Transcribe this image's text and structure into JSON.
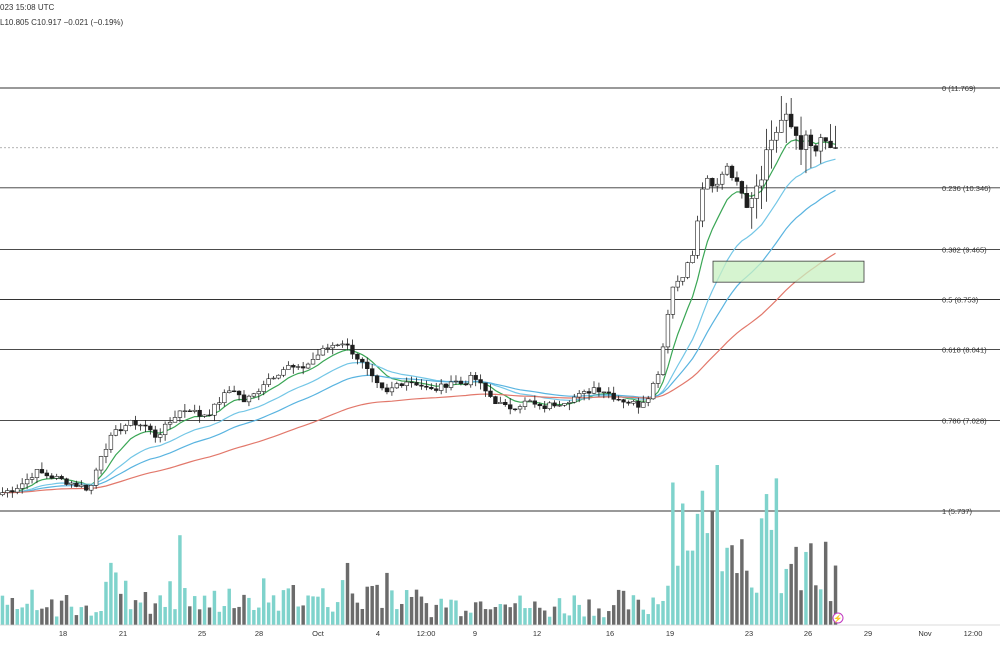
{
  "header": {
    "line1": "023 15:08 UTC",
    "line2": "L10.805  C10.917  −0.021 (−0.19%)"
  },
  "colors": {
    "up": "#ffffff",
    "down": "#1e1e1e",
    "ema_fast": "#3aa655",
    "ema_mid": "#73c6e6",
    "ema_mid2": "#5ab4e0",
    "ema_slow": "#e2786b",
    "vol_up": "#7fd3cc",
    "vol_down": "#6b6b6b",
    "zone_fill": "#c8f0c0",
    "zone_stroke": "#3a3a3a",
    "fib_line": "#333333"
  },
  "chart_data": {
    "type": "candlestick",
    "title": "",
    "price_range": [
      5.2,
      12.4
    ],
    "fib_levels": [
      {
        "ratio": "0",
        "price": 11.769,
        "label": "0 (11.769)"
      },
      {
        "ratio": "0.236",
        "price": 10.346,
        "label": "0.236 (10.346)"
      },
      {
        "ratio": "0.382",
        "price": 9.465,
        "label": "0.382 (9.465)"
      },
      {
        "ratio": "0.5",
        "price": 8.753,
        "label": "0.5 (8.753)"
      },
      {
        "ratio": "0.618",
        "price": 8.041,
        "label": "0.618 (8.041)"
      },
      {
        "ratio": "0.786",
        "price": 7.028,
        "label": "0.786 (7.028)"
      },
      {
        "ratio": "1",
        "price": 5.737,
        "label": "1 (5.737)"
      }
    ],
    "current_price": 10.917,
    "demand_zone": {
      "price_top": 9.3,
      "price_bottom": 9.0
    },
    "x_ticks": [
      "18",
      "21",
      "25",
      "28",
      "Oct",
      "4",
      "12:00",
      "9",
      "12",
      "16",
      "19",
      "23",
      "26",
      "29",
      "Nov",
      "12:00"
    ],
    "close_path": [
      6.0,
      6.05,
      6.15,
      6.3,
      6.25,
      6.2,
      6.15,
      6.1,
      6.05,
      6.55,
      6.8,
      6.95,
      7.0,
      6.95,
      6.8,
      6.95,
      7.15,
      7.2,
      7.1,
      7.15,
      7.35,
      7.5,
      7.3,
      7.4,
      7.6,
      7.7,
      7.8,
      7.75,
      7.85,
      8.0,
      8.1,
      8.15,
      8.0,
      7.8,
      7.55,
      7.4,
      7.55,
      7.6,
      7.55,
      7.45,
      7.5,
      7.6,
      7.55,
      7.65,
      7.45,
      7.3,
      7.2,
      7.25,
      7.3,
      7.2,
      7.25,
      7.3,
      7.35,
      7.4,
      7.5,
      7.45,
      7.35,
      7.3,
      7.25,
      7.4,
      7.8,
      8.9,
      9.1,
      9.4,
      10.5,
      10.3,
      10.7,
      10.4,
      10.2,
      10.5,
      11.0,
      11.3,
      11.2,
      11.0,
      10.85,
      10.95,
      10.92
    ],
    "volume_path": [
      8,
      6,
      9,
      5,
      7,
      10,
      6,
      5,
      8,
      22,
      15,
      12,
      10,
      9,
      8,
      11,
      14,
      9,
      8,
      10,
      13,
      9,
      8,
      12,
      11,
      10,
      14,
      9,
      12,
      10,
      11,
      13,
      9,
      14,
      16,
      12,
      9,
      10,
      8,
      7,
      9,
      8,
      10,
      9,
      12,
      15,
      9,
      8,
      7,
      6,
      8,
      7,
      9,
      8,
      7,
      6,
      9,
      8,
      7,
      10,
      18,
      55,
      42,
      38,
      35,
      48,
      40,
      30,
      28,
      34,
      26,
      22,
      20,
      24,
      18,
      12,
      17
    ],
    "volume_axis_max": 60
  },
  "volume_badge": "⚡"
}
